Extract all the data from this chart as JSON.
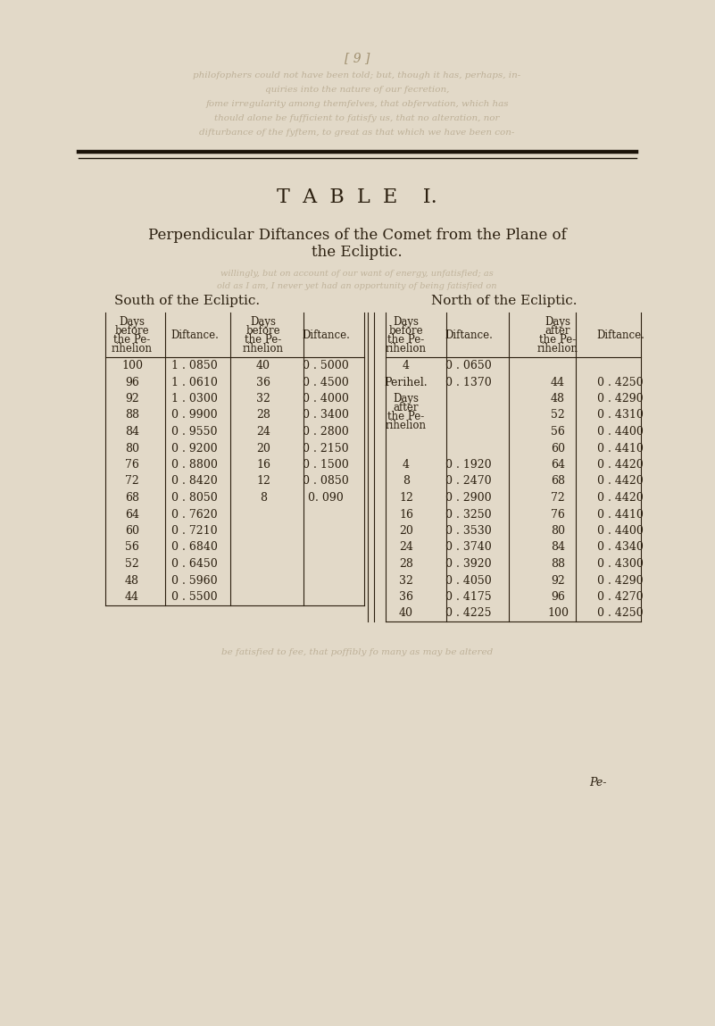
{
  "title_line1": "T  A  B  L  E    I.",
  "title_line2": "Perpendicular Diftances of the Comet from the Plane of",
  "title_line3_1": "the Comet from the Plane of",
  "title_line3": "the Ecliptic.",
  "south_label": "South of the Ecliptic.",
  "north_label": "North of the Ecliptic.",
  "bg_color": "#e2d9c8",
  "text_color": "#2c2010",
  "faded_text_color": "#a09070",
  "bleed_color": "#b8aa90",
  "col1_header": [
    "Days",
    "before",
    "the Pe-",
    "rihelion"
  ],
  "col2_header": "Diftance.",
  "col3_header": [
    "Days",
    "before",
    "the Pe-",
    "rihelion"
  ],
  "col4_header": "Diftance.",
  "col5_header": [
    "Days",
    "before",
    "the Pe-",
    "rihelion"
  ],
  "col6_header": "Diftance.",
  "col7_header": [
    "Days",
    "after",
    "the Pe-",
    "rihelion"
  ],
  "col8_header": "Diftance.",
  "south_col1": [
    100,
    96,
    92,
    88,
    84,
    80,
    76,
    72,
    68,
    64,
    60,
    56,
    52,
    48,
    44
  ],
  "south_col2": [
    "1 . 0850",
    "1 . 0610",
    "1 . 0300",
    "0 . 9900",
    "0 . 9550",
    "0 . 9200",
    "0 . 8800",
    "0 . 8420",
    "0 . 8050",
    "0 . 7620",
    "0 . 7210",
    "0 . 6840",
    "0 . 6450",
    "0 . 5960",
    "0 . 5500"
  ],
  "south_col3": [
    40,
    36,
    32,
    28,
    24,
    20,
    16,
    12,
    8
  ],
  "south_col4": [
    "0 . 5000",
    "0 . 4500",
    "0 . 4000",
    "0 . 3400",
    "0 . 2800",
    "0 . 2150",
    "0 . 1500",
    "0 . 0850",
    "0. 090"
  ],
  "north_col1b": [
    4,
    8,
    12,
    16,
    20,
    24,
    28,
    32,
    36,
    40
  ],
  "north_col2b": [
    "0 . 1920",
    "0 . 2470",
    "0 . 2900",
    "0 . 3250",
    "0 . 3530",
    "0 . 3740",
    "0 . 3920",
    "0 . 4050",
    "0 . 4175",
    "0 . 4225"
  ],
  "north_col3": [
    44,
    48,
    52,
    56,
    60,
    64,
    68,
    72,
    76,
    80,
    84,
    88,
    92,
    96,
    100
  ],
  "north_col4": [
    "0 . 4250",
    "0 . 4290",
    "0 . 4310",
    "0 . 4400",
    "0 . 4410",
    "0 . 4420",
    "0 . 4420",
    "0 . 4420",
    "0 . 4410",
    "0 . 4400",
    "0 . 4340",
    "0 . 4300",
    "0 . 4290",
    "0 . 4270",
    "0 . 4250"
  ],
  "footer": "Pe-",
  "page_marker": "[ 9 ]",
  "bleed_lines_top": [
    "philofophers could not have been told; but, though it has, perhaps, in-",
    "quiries into the nature of our fecretion,",
    "fome irregularity among themfelves, that obfervation, which has",
    "thould alone be fufficient to fatisfy us, that no alteration, nor",
    "difturbance of the fyftem, to great as that which we have been con-"
  ],
  "bleed_lines_mid": [
    "willingly, but on account of our want of energy, unfatisfied; as",
    "old as I am, I never yet had an opportunity of being fatisfied on"
  ],
  "bleed_line_bot": "be fatisfied to fee, that poffibly fo many as may be altered"
}
